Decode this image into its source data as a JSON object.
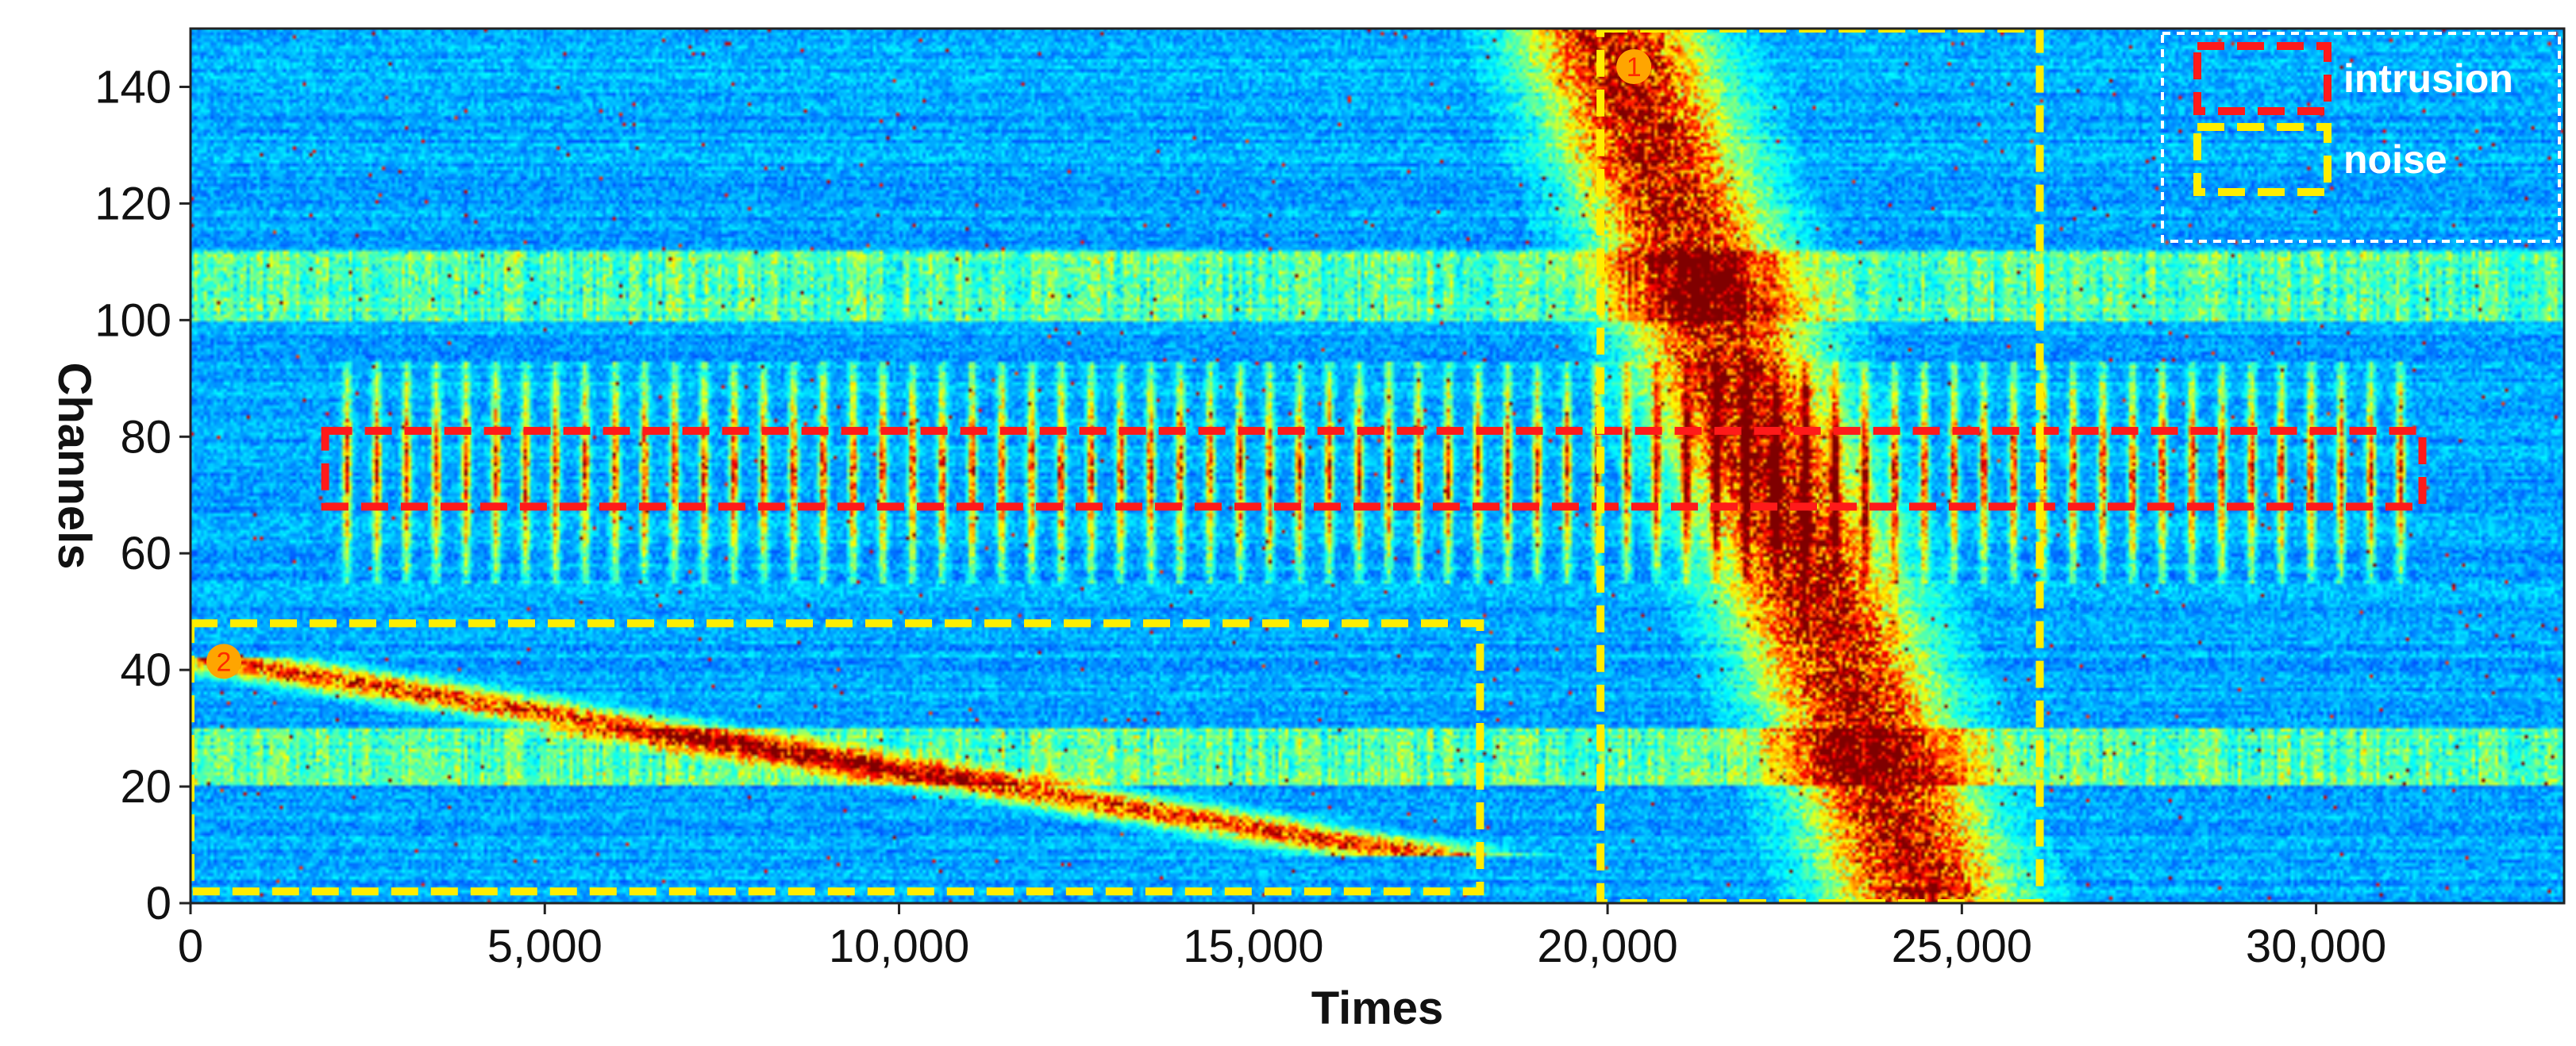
{
  "chart_data": {
    "type": "heatmap",
    "title": "",
    "xlabel": "Times",
    "ylabel": "Channels",
    "xlim": [
      0,
      33500
    ],
    "ylim": [
      0,
      150
    ],
    "x_ticks": [
      0,
      5000,
      10000,
      15000,
      20000,
      25000,
      30000
    ],
    "x_tick_labels": [
      "0",
      "5,000",
      "10,000",
      "15,000",
      "20,000",
      "25,000",
      "30,000"
    ],
    "y_ticks": [
      0,
      20,
      40,
      60,
      80,
      100,
      120,
      140
    ],
    "y_tick_labels": [
      "0",
      "20",
      "40",
      "60",
      "80",
      "100",
      "120",
      "140"
    ],
    "colormap": "jet",
    "colors": {
      "background": "#041a9e",
      "intrusion_box": "#ff1a1a",
      "noise_box": "#ffee00",
      "legend_box": "#ffffff",
      "marker_fill": "#ffa500"
    },
    "legend": {
      "placement": "top-right",
      "entries": [
        {
          "label": "intrusion",
          "style": "red-dashed-box"
        },
        {
          "label": "noise",
          "style": "yellow-dashed-box"
        }
      ]
    },
    "annotations": [
      {
        "kind": "intrusion",
        "x_range": [
          1900,
          31500
        ],
        "y_range": [
          68,
          81
        ]
      },
      {
        "kind": "noise",
        "label": "1",
        "x_range": [
          19900,
          26100
        ],
        "y_range": [
          0,
          150
        ]
      },
      {
        "kind": "noise",
        "label": "2",
        "x_range": [
          0,
          18200
        ],
        "y_range": [
          2,
          48
        ]
      }
    ],
    "features": [
      {
        "name": "noise-band-1",
        "x_start": 20000,
        "y_start": 150,
        "x_end": 24500,
        "y_end": 0,
        "intensity": 0.9
      },
      {
        "name": "noise-band-2",
        "x_start": 200,
        "y_start": 42,
        "x_end": 17500,
        "y_end": 8,
        "intensity": 0.75
      },
      {
        "name": "intrusion-stripes",
        "x_from": 2000,
        "x_to": 31500,
        "y_from": 55,
        "y_to": 93,
        "period": 420,
        "intensity": 0.8
      },
      {
        "name": "background-band",
        "y_from": 100,
        "y_to": 112,
        "intensity": 0.35
      },
      {
        "name": "background-band",
        "y_from": 20,
        "y_to": 30,
        "intensity": 0.35
      }
    ]
  }
}
